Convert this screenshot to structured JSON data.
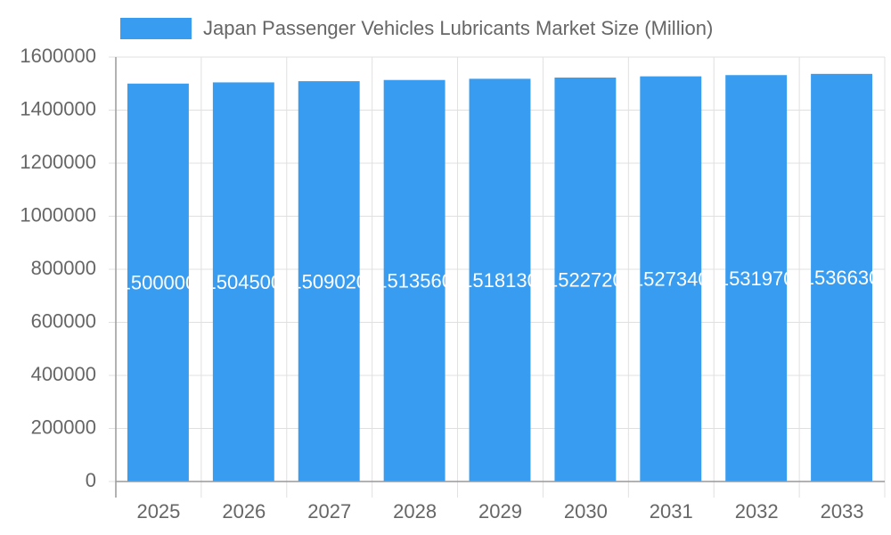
{
  "chart_data": {
    "type": "bar",
    "categories": [
      "2025",
      "2026",
      "2027",
      "2028",
      "2029",
      "2030",
      "2031",
      "2032",
      "2033"
    ],
    "series": [
      {
        "name": "Japan Passenger Vehicles Lubricants Market Size (Million)",
        "color": "#389cf0",
        "values": [
          1500000,
          1504500,
          1509020,
          1513560,
          1518130,
          1522720,
          1527340,
          1531970,
          1536630
        ]
      }
    ],
    "ylim": [
      0,
      1600000
    ],
    "yticks": [
      0,
      200000,
      400000,
      600000,
      800000,
      1000000,
      1200000,
      1400000,
      1600000
    ],
    "grid": true,
    "legend": "top"
  }
}
